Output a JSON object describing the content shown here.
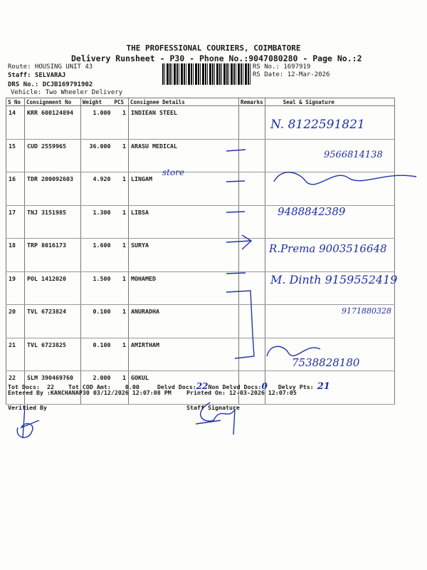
{
  "header": {
    "company": "THE PROFESSIONAL COURIERS, COIMBATORE",
    "title": "Delivery Runsheet - P30 - Phone No.:9047080280 - Page No.:2",
    "route": "Route: HOUSING UNIT 43",
    "staff": "Staff: SELVARAJ",
    "drs_no": "DRS No.: DCJB169791902",
    "vehicle": "Vehicle: Two Wheeler Delivery",
    "rs_no": "RS No.: 1697919",
    "rs_date": "RS Date: 12-Mar-2026"
  },
  "table": {
    "columns": [
      "S No",
      "Consignment No",
      "Weight",
      "PCS",
      "Consignee Details",
      "Remarks",
      "Seal & Signature"
    ],
    "rows": [
      {
        "sno": "14",
        "consignment": "KRR 600124894",
        "weight": "1.000",
        "pcs": "1",
        "consignee": "INDIEAN STEEL",
        "handwritten": "N. 8122591821"
      },
      {
        "sno": "15",
        "consignment": "CUD 2559965",
        "weight": "36.000",
        "pcs": "1",
        "consignee": "ARASU MEDICAL",
        "handwritten": "9566814138"
      },
      {
        "sno": "16",
        "consignment": "TDR 200092603",
        "weight": "4.920",
        "pcs": "1",
        "consignee": "LINGAM",
        "consignee_note": "store",
        "handwritten": ""
      },
      {
        "sno": "17",
        "consignment": "TNJ 3151985",
        "weight": "1.300",
        "pcs": "1",
        "consignee": "LIBSA",
        "handwritten": "9488842389"
      },
      {
        "sno": "18",
        "consignment": "TRP 8016173",
        "weight": "1.600",
        "pcs": "1",
        "consignee": "SURYA",
        "handwritten": "R.Prema 9003516648"
      },
      {
        "sno": "19",
        "consignment": "POL 1412020",
        "weight": "1.500",
        "pcs": "1",
        "consignee": "MOHAMED",
        "handwritten": "M. Dinth 9159552419"
      },
      {
        "sno": "20",
        "consignment": "TVL 6723824",
        "weight": "0.100",
        "pcs": "1",
        "consignee": "ANURADHA",
        "handwritten": "9171880328"
      },
      {
        "sno": "21",
        "consignment": "TVL 6723825",
        "weight": "0.100",
        "pcs": "1",
        "consignee": "AMIRTHAM",
        "handwritten": ""
      },
      {
        "sno": "22",
        "consignment": "SLM 390469760",
        "weight": "2.000",
        "pcs": "1",
        "consignee": "GOKUL",
        "handwritten": "7538828180"
      }
    ]
  },
  "footer": {
    "tot_docs_label": "Tot Docs:",
    "tot_docs": "22",
    "tot_cod_label": "Tot COD Amt:",
    "tot_cod": "0.00",
    "delvd_label": "Delvd Docs:",
    "delvd": "22",
    "non_delvd_label": "Non Delvd Docs:",
    "non_delvd": "0",
    "delvy_pts_label": "Delvy Pts:",
    "delvy_pts": "21",
    "entered_by": "Entered By :KANCHANAP30 03/12/2026 12:07:08 PM",
    "printed_on": "Printed On: 12-03-2026 12:07:05",
    "verified_by": "Verified By",
    "staff_signature": "Staff Signature"
  },
  "colors": {
    "ink": "#1d2fa6",
    "print": "#1a1a1a"
  }
}
